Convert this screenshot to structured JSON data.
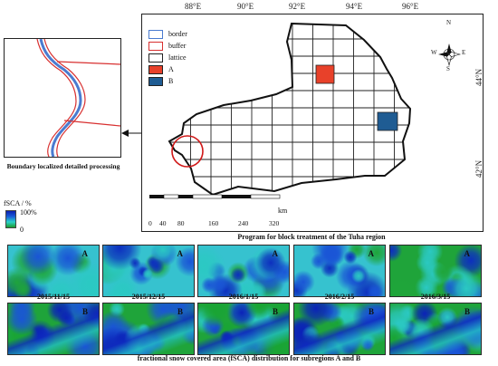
{
  "map": {
    "lon_ticks": [
      "88°E",
      "90°E",
      "92°E",
      "94°E",
      "96°E"
    ],
    "lat_ticks": [
      "44°N",
      "42°N"
    ],
    "legend": [
      {
        "label": "border",
        "color": "#4a7bd0",
        "kind": "line"
      },
      {
        "label": "buffer",
        "color": "#d83030",
        "kind": "line"
      },
      {
        "label": "lattice",
        "color": "#222222",
        "kind": "line"
      },
      {
        "label": "A",
        "color": "#e8412a",
        "kind": "fill"
      },
      {
        "label": "B",
        "color": "#1f5c93",
        "kind": "fill"
      }
    ],
    "compass": {
      "n": "N",
      "s": "S",
      "e": "E",
      "w": "W"
    },
    "scale_bar": {
      "ticks": [
        "0",
        "40",
        "80",
        "160",
        "240",
        "320"
      ],
      "unit": "km"
    },
    "title": "Program for block treatment of the Tuha region",
    "subregion_a_color": "#e8412a",
    "subregion_b_color": "#1f5c93"
  },
  "inset": {
    "caption": "Boundary localized detailed processing"
  },
  "colorbar": {
    "title": "fSCA / %",
    "max_label": "100%",
    "min_label": "0",
    "colors": [
      "#1e9b2e",
      "#2cd2c8",
      "#1a5cd8",
      "#0a1fb0"
    ]
  },
  "series": {
    "row_a_label": "A",
    "row_b_label": "B",
    "dates": [
      "2015/11/15",
      "2015/12/15",
      "2016/1/15",
      "2016/2/15",
      "2016/3/15"
    ],
    "caption": "fractional snow covered area (fSCA) distribution for subregions A and B"
  }
}
